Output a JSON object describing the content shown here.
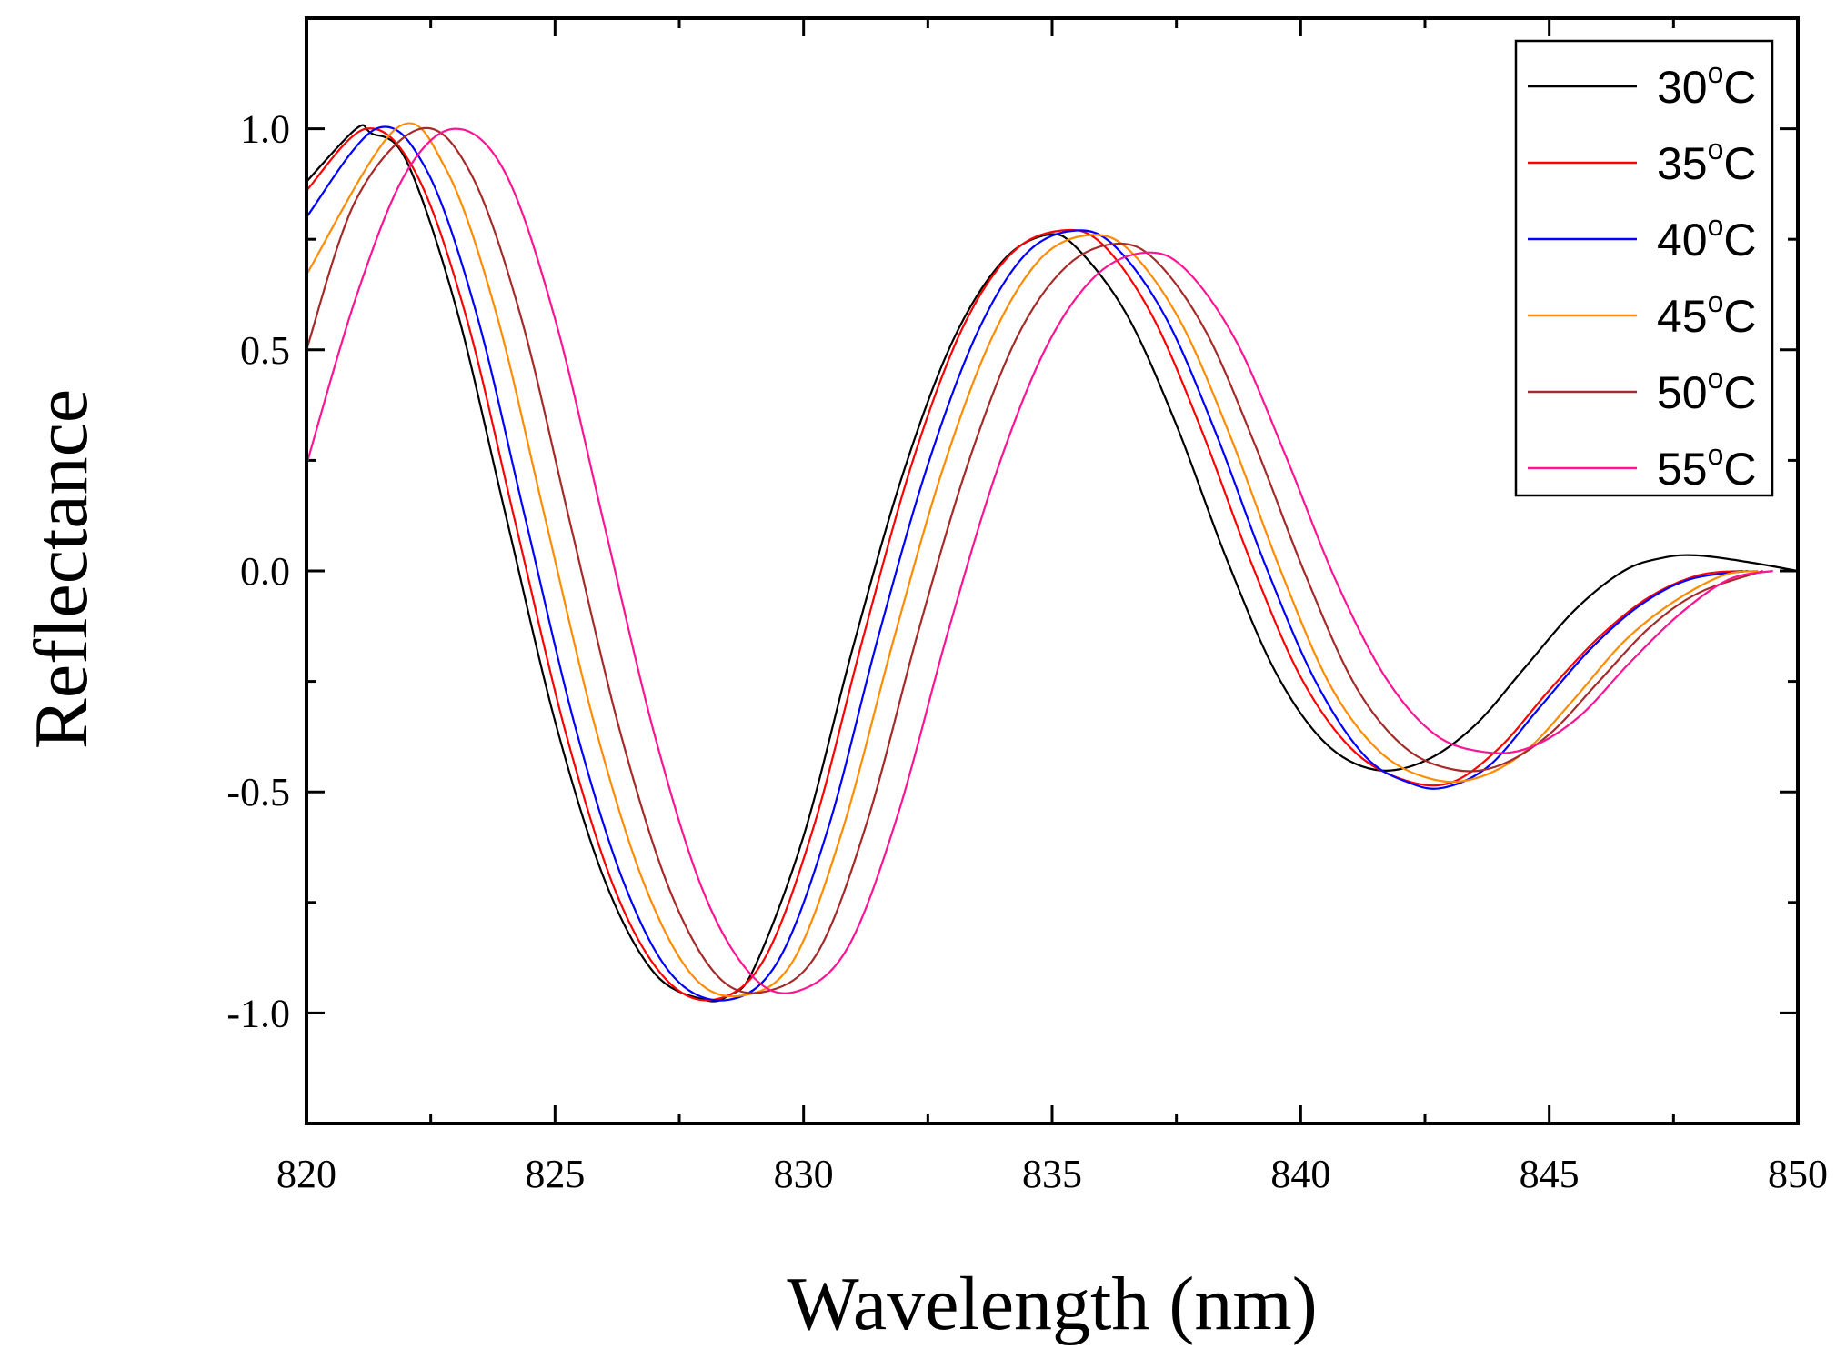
{
  "chart_data": {
    "type": "line",
    "title": "",
    "xlabel": "Wavelength (nm)",
    "ylabel": "Reflectance",
    "xlim": [
      820,
      850
    ],
    "ylim": [
      -1.25,
      1.25
    ],
    "x_ticks": [
      820,
      825,
      830,
      835,
      840,
      845,
      850
    ],
    "x_tick_labels": [
      "820",
      "825",
      "830",
      "835",
      "840",
      "845",
      "850"
    ],
    "y_ticks": [
      1.0,
      0.5,
      0.0,
      -0.5,
      -1.0
    ],
    "y_tick_labels": [
      "1.0",
      "0.5",
      "0.0",
      "-0.5",
      "-1.0"
    ],
    "legend_position": "top-right",
    "series": [
      {
        "name": "30°C",
        "value": "30",
        "unit": "°C",
        "color": "#000000",
        "points": [
          [
            820,
            0.88
          ],
          [
            821.0,
            1.0
          ],
          [
            821.3,
            0.99
          ],
          [
            822.0,
            0.93
          ],
          [
            823.0,
            0.6
          ],
          [
            824.0,
            0.13
          ],
          [
            825.0,
            -0.34
          ],
          [
            826.0,
            -0.7
          ],
          [
            827.0,
            -0.91
          ],
          [
            828.0,
            -0.97
          ],
          [
            828.5,
            -0.96
          ],
          [
            829.0,
            -0.9
          ],
          [
            830.0,
            -0.6
          ],
          [
            831.0,
            -0.17
          ],
          [
            832.0,
            0.22
          ],
          [
            833.0,
            0.52
          ],
          [
            834.0,
            0.7
          ],
          [
            834.9,
            0.76
          ],
          [
            835.5,
            0.73
          ],
          [
            836.5,
            0.58
          ],
          [
            837.5,
            0.33
          ],
          [
            838.5,
            0.03
          ],
          [
            839.5,
            -0.23
          ],
          [
            840.5,
            -0.39
          ],
          [
            841.5,
            -0.45
          ],
          [
            842.5,
            -0.43
          ],
          [
            843.5,
            -0.35
          ],
          [
            844.5,
            -0.22
          ],
          [
            845.5,
            -0.09
          ],
          [
            846.5,
            0.0
          ],
          [
            847.3,
            0.03
          ],
          [
            848.0,
            0.035
          ],
          [
            849.0,
            0.02
          ],
          [
            850.0,
            0.0
          ]
        ]
      },
      {
        "name": "35°C",
        "value": "35",
        "unit": "°C",
        "color": "#ff0000",
        "points": [
          [
            820,
            0.86
          ],
          [
            821.2,
            1.0
          ],
          [
            822.2,
            0.9
          ],
          [
            823.2,
            0.58
          ],
          [
            824.2,
            0.11
          ],
          [
            825.2,
            -0.36
          ],
          [
            826.2,
            -0.72
          ],
          [
            827.2,
            -0.92
          ],
          [
            828.2,
            -0.97
          ],
          [
            829.2,
            -0.88
          ],
          [
            830.2,
            -0.58
          ],
          [
            831.2,
            -0.15
          ],
          [
            832.2,
            0.25
          ],
          [
            833.2,
            0.55
          ],
          [
            834.2,
            0.72
          ],
          [
            835.2,
            0.77
          ],
          [
            836.0,
            0.74
          ],
          [
            837.0,
            0.58
          ],
          [
            838.0,
            0.32
          ],
          [
            839.0,
            0.02
          ],
          [
            840.0,
            -0.24
          ],
          [
            841.0,
            -0.4
          ],
          [
            842.0,
            -0.47
          ],
          [
            843.0,
            -0.48
          ],
          [
            844.0,
            -0.4
          ],
          [
            845.0,
            -0.27
          ],
          [
            846.0,
            -0.15
          ],
          [
            847.0,
            -0.06
          ],
          [
            848.0,
            -0.01
          ],
          [
            848.9,
            0.0
          ]
        ]
      },
      {
        "name": "40°C",
        "value": "40",
        "unit": "°C",
        "color": "#0000ff",
        "points": [
          [
            820,
            0.8
          ],
          [
            821.4,
            1.0
          ],
          [
            822.4,
            0.91
          ],
          [
            823.4,
            0.59
          ],
          [
            824.4,
            0.12
          ],
          [
            825.4,
            -0.35
          ],
          [
            826.4,
            -0.71
          ],
          [
            827.4,
            -0.92
          ],
          [
            828.5,
            -0.97
          ],
          [
            829.5,
            -0.88
          ],
          [
            830.5,
            -0.58
          ],
          [
            831.5,
            -0.15
          ],
          [
            832.5,
            0.24
          ],
          [
            833.5,
            0.54
          ],
          [
            834.5,
            0.72
          ],
          [
            835.5,
            0.77
          ],
          [
            836.3,
            0.73
          ],
          [
            837.3,
            0.57
          ],
          [
            838.3,
            0.31
          ],
          [
            839.3,
            0.01
          ],
          [
            840.3,
            -0.25
          ],
          [
            841.3,
            -0.42
          ],
          [
            842.2,
            -0.48
          ],
          [
            842.9,
            -0.49
          ],
          [
            843.8,
            -0.44
          ],
          [
            844.8,
            -0.31
          ],
          [
            845.8,
            -0.18
          ],
          [
            846.8,
            -0.08
          ],
          [
            847.8,
            -0.02
          ],
          [
            849.0,
            0.0
          ]
        ]
      },
      {
        "name": "45°C",
        "value": "45",
        "unit": "°C",
        "color": "#ff8c00",
        "points": [
          [
            820,
            0.67
          ],
          [
            821.8,
            1.0
          ],
          [
            822.8,
            0.91
          ],
          [
            823.8,
            0.59
          ],
          [
            824.8,
            0.12
          ],
          [
            825.8,
            -0.35
          ],
          [
            826.8,
            -0.71
          ],
          [
            827.8,
            -0.92
          ],
          [
            828.8,
            -0.96
          ],
          [
            829.8,
            -0.88
          ],
          [
            830.8,
            -0.58
          ],
          [
            831.8,
            -0.16
          ],
          [
            832.8,
            0.23
          ],
          [
            833.8,
            0.53
          ],
          [
            834.8,
            0.71
          ],
          [
            835.8,
            0.76
          ],
          [
            836.6,
            0.72
          ],
          [
            837.6,
            0.56
          ],
          [
            838.6,
            0.3
          ],
          [
            839.6,
            0.0
          ],
          [
            840.6,
            -0.26
          ],
          [
            841.6,
            -0.41
          ],
          [
            842.6,
            -0.47
          ],
          [
            843.5,
            -0.47
          ],
          [
            844.5,
            -0.41
          ],
          [
            845.5,
            -0.29
          ],
          [
            846.5,
            -0.16
          ],
          [
            847.5,
            -0.07
          ],
          [
            848.5,
            -0.01
          ],
          [
            849.2,
            0.0
          ]
        ]
      },
      {
        "name": "50°C",
        "value": "50",
        "unit": "°C",
        "color": "#a52a2a",
        "points": [
          [
            820,
            0.5
          ],
          [
            821.0,
            0.84
          ],
          [
            822.3,
            1.0
          ],
          [
            823.3,
            0.9
          ],
          [
            824.3,
            0.58
          ],
          [
            825.3,
            0.11
          ],
          [
            826.3,
            -0.36
          ],
          [
            827.3,
            -0.72
          ],
          [
            828.3,
            -0.92
          ],
          [
            829.3,
            -0.95
          ],
          [
            830.3,
            -0.86
          ],
          [
            831.3,
            -0.56
          ],
          [
            832.3,
            -0.14
          ],
          [
            833.3,
            0.24
          ],
          [
            834.3,
            0.53
          ],
          [
            835.3,
            0.69
          ],
          [
            836.3,
            0.74
          ],
          [
            837.1,
            0.7
          ],
          [
            838.1,
            0.54
          ],
          [
            839.1,
            0.28
          ],
          [
            840.1,
            -0.01
          ],
          [
            841.1,
            -0.26
          ],
          [
            842.1,
            -0.4
          ],
          [
            843.1,
            -0.45
          ],
          [
            844.0,
            -0.44
          ],
          [
            845.0,
            -0.37
          ],
          [
            846.0,
            -0.25
          ],
          [
            847.0,
            -0.13
          ],
          [
            848.0,
            -0.05
          ],
          [
            849.3,
            0.0
          ]
        ]
      },
      {
        "name": "55°C",
        "value": "55",
        "unit": "°C",
        "color": "#ff1493",
        "points": [
          [
            820,
            0.24
          ],
          [
            821.0,
            0.62
          ],
          [
            822.0,
            0.9
          ],
          [
            823.0,
            1.0
          ],
          [
            824.0,
            0.9
          ],
          [
            825.0,
            0.57
          ],
          [
            826.0,
            0.1
          ],
          [
            827.0,
            -0.37
          ],
          [
            828.0,
            -0.73
          ],
          [
            829.0,
            -0.92
          ],
          [
            829.9,
            -0.95
          ],
          [
            830.9,
            -0.85
          ],
          [
            831.9,
            -0.55
          ],
          [
            832.9,
            -0.14
          ],
          [
            833.9,
            0.23
          ],
          [
            834.9,
            0.51
          ],
          [
            835.9,
            0.67
          ],
          [
            836.9,
            0.72
          ],
          [
            837.7,
            0.68
          ],
          [
            838.7,
            0.52
          ],
          [
            839.7,
            0.26
          ],
          [
            840.7,
            -0.02
          ],
          [
            841.7,
            -0.24
          ],
          [
            842.7,
            -0.37
          ],
          [
            843.7,
            -0.41
          ],
          [
            844.6,
            -0.4
          ],
          [
            845.6,
            -0.33
          ],
          [
            846.6,
            -0.21
          ],
          [
            847.6,
            -0.1
          ],
          [
            848.6,
            -0.02
          ],
          [
            849.5,
            0.0
          ]
        ]
      }
    ]
  }
}
